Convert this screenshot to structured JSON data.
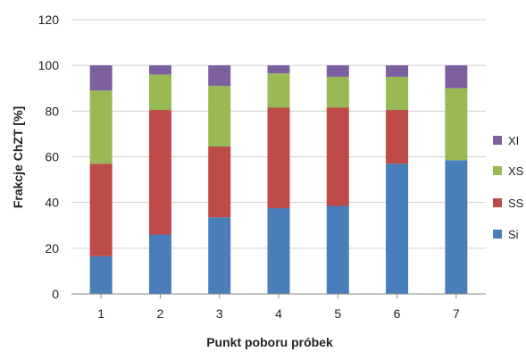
{
  "chart_data": {
    "type": "bar",
    "stacked": true,
    "categories": [
      "1",
      "2",
      "3",
      "4",
      "5",
      "6",
      "7"
    ],
    "series": [
      {
        "name": "Si",
        "color": "#4a7ebb",
        "values": [
          16.5,
          26,
          33.5,
          37.5,
          38.5,
          57,
          58.5
        ]
      },
      {
        "name": "SS",
        "color": "#be4b48",
        "values": [
          40.5,
          54.5,
          31,
          44,
          43,
          23.5,
          0
        ]
      },
      {
        "name": "XS",
        "color": "#98b954",
        "values": [
          32,
          15.5,
          26.5,
          15,
          13.5,
          14.5,
          31.5
        ]
      },
      {
        "name": "XI",
        "color": "#7d60a0",
        "values": [
          11,
          4,
          9,
          3.5,
          5,
          5,
          10
        ]
      }
    ],
    "xlabel": "Punkt poboru próbek",
    "ylabel": "Frakcje ChZT [%]",
    "ylim": [
      0,
      120
    ],
    "yticks": [
      "0",
      "20",
      "40",
      "60",
      "80",
      "100",
      "120"
    ],
    "grid": true,
    "legend_position": "right"
  }
}
